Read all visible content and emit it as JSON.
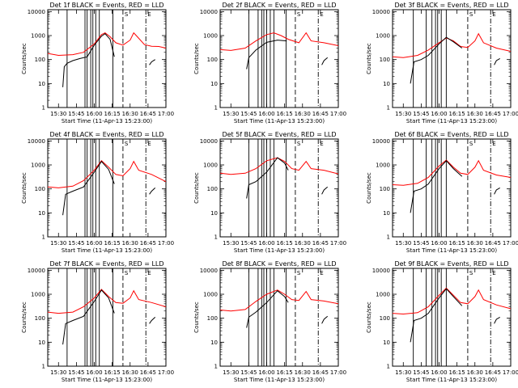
{
  "chart_data": {
    "type": "line",
    "layout": "3x3 grid",
    "xlabel": "Start Time (11-Apr-13 15:23:00)",
    "ylabel": "Counts/sec",
    "yscale": "log",
    "ylim": [
      1,
      12000
    ],
    "y_ticks": [
      1,
      10,
      100,
      1000,
      10000
    ],
    "y_tick_labels": [
      "1",
      "10",
      "100",
      "1000",
      "10000"
    ],
    "xlim_minutes": [
      15.35,
      17.0
    ],
    "x_tick_labels": [
      "15:30",
      "15:45",
      "16:00",
      "16:15",
      "16:30",
      "16:45",
      "17:00"
    ],
    "x_tick_values_hours": [
      15.5,
      15.75,
      16.0,
      16.25,
      16.5,
      16.75,
      17.0
    ],
    "colors": {
      "events": "#000000",
      "lld": "#ff0000"
    },
    "marker_labels": {
      "dashed": "S",
      "dashdot": "E"
    },
    "panels": [
      {
        "title": "Det 1f BLACK = Events, RED = LLD",
        "solid_lines_hours": [
          15.62,
          15.87,
          15.9,
          15.95,
          15.98,
          16.02,
          16.07,
          16.26
        ],
        "dashed_hour": 16.4,
        "dashdot_hour": 16.72,
        "red": [
          [
            15.35,
            180
          ],
          [
            15.5,
            150
          ],
          [
            15.7,
            160
          ],
          [
            15.85,
            200
          ],
          [
            16.0,
            450
          ],
          [
            16.1,
            1100
          ],
          [
            16.15,
            1300
          ],
          [
            16.22,
            900
          ],
          [
            16.3,
            500
          ],
          [
            16.4,
            400
          ],
          [
            16.5,
            650
          ],
          [
            16.55,
            1300
          ],
          [
            16.6,
            900
          ],
          [
            16.7,
            420
          ],
          [
            16.8,
            360
          ],
          [
            16.9,
            350
          ],
          [
            17.0,
            300
          ]
        ],
        "black": [
          [
            15.56,
            7
          ],
          [
            15.58,
            50
          ],
          [
            15.62,
            70
          ],
          [
            15.7,
            90
          ],
          [
            15.8,
            110
          ],
          [
            15.9,
            130
          ],
          [
            16.0,
            400
          ],
          [
            16.1,
            950
          ],
          [
            16.15,
            1200
          ],
          [
            16.22,
            700
          ],
          [
            16.28,
            130
          ]
        ],
        "black2": [
          [
            16.77,
            60
          ],
          [
            16.8,
            80
          ],
          [
            16.85,
            100
          ]
        ]
      },
      {
        "title": "Det 2f BLACK = Events, RED = LLD",
        "solid_lines_hours": [
          15.75,
          15.88,
          15.93,
          15.96,
          16.0,
          16.05,
          16.1,
          16.27
        ],
        "dashed_hour": 16.4,
        "dashdot_hour": 16.72,
        "red": [
          [
            15.35,
            260
          ],
          [
            15.5,
            240
          ],
          [
            15.7,
            300
          ],
          [
            15.85,
            600
          ],
          [
            16.0,
            1100
          ],
          [
            16.1,
            1300
          ],
          [
            16.2,
            1000
          ],
          [
            16.3,
            700
          ],
          [
            16.45,
            500
          ],
          [
            16.55,
            1300
          ],
          [
            16.62,
            600
          ],
          [
            16.8,
            500
          ],
          [
            17.0,
            380
          ]
        ],
        "black": [
          [
            15.72,
            40
          ],
          [
            15.75,
            120
          ],
          [
            15.85,
            250
          ],
          [
            16.0,
            520
          ],
          [
            16.15,
            650
          ],
          [
            16.28,
            600
          ]
        ],
        "black2": [
          [
            16.77,
            60
          ],
          [
            16.8,
            90
          ],
          [
            16.85,
            120
          ]
        ]
      },
      {
        "title": "Det 3f BLACK = Events, RED = LLD",
        "solid_lines_hours": [
          15.64,
          15.82,
          15.9,
          15.95,
          15.98,
          16.03,
          16.1
        ],
        "dashed_hour": 16.4,
        "dashdot_hour": 16.72,
        "red": [
          [
            15.35,
            130
          ],
          [
            15.5,
            120
          ],
          [
            15.7,
            150
          ],
          [
            15.85,
            250
          ],
          [
            16.0,
            500
          ],
          [
            16.1,
            800
          ],
          [
            16.2,
            600
          ],
          [
            16.3,
            350
          ],
          [
            16.4,
            320
          ],
          [
            16.5,
            600
          ],
          [
            16.55,
            1200
          ],
          [
            16.62,
            500
          ],
          [
            16.8,
            300
          ],
          [
            17.0,
            220
          ]
        ],
        "black": [
          [
            15.6,
            10
          ],
          [
            15.65,
            80
          ],
          [
            15.75,
            100
          ],
          [
            15.85,
            150
          ],
          [
            16.0,
            450
          ],
          [
            16.1,
            850
          ],
          [
            16.2,
            550
          ],
          [
            16.32,
            300
          ]
        ],
        "black2": [
          [
            16.77,
            60
          ],
          [
            16.8,
            90
          ],
          [
            16.85,
            110
          ]
        ]
      },
      {
        "title": "Det 4f BLACK = Events, RED = LLD",
        "solid_lines_hours": [
          15.62,
          15.87,
          15.9,
          15.95,
          15.98,
          16.02,
          16.07,
          16.26
        ],
        "dashed_hour": 16.4,
        "dashdot_hour": 16.72,
        "red": [
          [
            15.35,
            120
          ],
          [
            15.5,
            110
          ],
          [
            15.7,
            130
          ],
          [
            15.85,
            220
          ],
          [
            16.0,
            600
          ],
          [
            16.1,
            1500
          ],
          [
            16.2,
            800
          ],
          [
            16.3,
            400
          ],
          [
            16.4,
            350
          ],
          [
            16.5,
            700
          ],
          [
            16.55,
            1400
          ],
          [
            16.62,
            600
          ],
          [
            16.8,
            400
          ],
          [
            17.0,
            200
          ]
        ],
        "black": [
          [
            15.56,
            8
          ],
          [
            15.6,
            60
          ],
          [
            15.7,
            80
          ],
          [
            15.85,
            120
          ],
          [
            16.0,
            500
          ],
          [
            16.1,
            1400
          ],
          [
            16.2,
            650
          ],
          [
            16.28,
            160
          ]
        ],
        "black2": [
          [
            16.77,
            60
          ],
          [
            16.8,
            80
          ],
          [
            16.85,
            110
          ]
        ]
      },
      {
        "title": "Det 5f BLACK = Events, RED = LLD",
        "solid_lines_hours": [
          15.75,
          15.88,
          15.93,
          15.96,
          16.0,
          16.05,
          16.1,
          16.27
        ],
        "dashed_hour": 16.4,
        "dashdot_hour": 16.72,
        "red": [
          [
            15.35,
            450
          ],
          [
            15.5,
            400
          ],
          [
            15.7,
            450
          ],
          [
            15.85,
            700
          ],
          [
            16.0,
            1500
          ],
          [
            16.15,
            2000
          ],
          [
            16.25,
            1400
          ],
          [
            16.35,
            700
          ],
          [
            16.45,
            600
          ],
          [
            16.55,
            1400
          ],
          [
            16.62,
            700
          ],
          [
            16.8,
            600
          ],
          [
            17.0,
            420
          ]
        ],
        "black": [
          [
            15.72,
            40
          ],
          [
            15.75,
            150
          ],
          [
            15.85,
            200
          ],
          [
            16.0,
            500
          ],
          [
            16.15,
            2000
          ],
          [
            16.25,
            1200
          ],
          [
            16.3,
            600
          ]
        ],
        "black2": [
          [
            16.77,
            60
          ],
          [
            16.8,
            90
          ],
          [
            16.85,
            120
          ]
        ]
      },
      {
        "title": "Det 6f BLACK = Events, RED = LLD",
        "solid_lines_hours": [
          15.64,
          15.82,
          15.9,
          15.95,
          15.98,
          16.03,
          16.1
        ],
        "dashed_hour": 16.4,
        "dashdot_hour": 16.72,
        "red": [
          [
            15.35,
            150
          ],
          [
            15.5,
            140
          ],
          [
            15.7,
            170
          ],
          [
            15.85,
            300
          ],
          [
            16.0,
            900
          ],
          [
            16.1,
            1600
          ],
          [
            16.2,
            800
          ],
          [
            16.3,
            450
          ],
          [
            16.4,
            400
          ],
          [
            16.5,
            800
          ],
          [
            16.55,
            1500
          ],
          [
            16.62,
            600
          ],
          [
            16.8,
            380
          ],
          [
            17.0,
            300
          ]
        ],
        "black": [
          [
            15.6,
            10
          ],
          [
            15.65,
            80
          ],
          [
            15.75,
            100
          ],
          [
            15.85,
            160
          ],
          [
            16.0,
            700
          ],
          [
            16.1,
            1500
          ],
          [
            16.2,
            700
          ],
          [
            16.32,
            330
          ]
        ],
        "black2": [
          [
            16.77,
            60
          ],
          [
            16.8,
            90
          ],
          [
            16.85,
            110
          ]
        ]
      },
      {
        "title": "Det 7f BLACK = Events, RED = LLD",
        "solid_lines_hours": [
          15.62,
          15.87,
          15.9,
          15.95,
          15.98,
          16.02,
          16.07,
          16.26
        ],
        "dashed_hour": 16.4,
        "dashdot_hour": 16.72,
        "red": [
          [
            15.35,
            180
          ],
          [
            15.5,
            160
          ],
          [
            15.7,
            180
          ],
          [
            15.85,
            300
          ],
          [
            16.0,
            700
          ],
          [
            16.1,
            1600
          ],
          [
            16.2,
            800
          ],
          [
            16.3,
            450
          ],
          [
            16.4,
            420
          ],
          [
            16.5,
            700
          ],
          [
            16.55,
            1400
          ],
          [
            16.62,
            600
          ],
          [
            16.8,
            450
          ],
          [
            17.0,
            300
          ]
        ],
        "black": [
          [
            15.56,
            8
          ],
          [
            15.6,
            60
          ],
          [
            15.7,
            80
          ],
          [
            15.85,
            120
          ],
          [
            16.0,
            500
          ],
          [
            16.1,
            1500
          ],
          [
            16.2,
            700
          ],
          [
            16.28,
            160
          ]
        ],
        "black2": [
          [
            16.77,
            60
          ],
          [
            16.8,
            80
          ],
          [
            16.85,
            110
          ]
        ]
      },
      {
        "title": "Det 8f BLACK = Events, RED = LLD",
        "solid_lines_hours": [
          15.75,
          15.88,
          15.93,
          15.96,
          16.0,
          16.05,
          16.1,
          16.27
        ],
        "dashed_hour": 16.4,
        "dashdot_hour": 16.72,
        "red": [
          [
            15.35,
            220
          ],
          [
            15.5,
            200
          ],
          [
            15.7,
            230
          ],
          [
            15.85,
            500
          ],
          [
            16.0,
            1000
          ],
          [
            16.15,
            1500
          ],
          [
            16.25,
            1000
          ],
          [
            16.35,
            600
          ],
          [
            16.45,
            550
          ],
          [
            16.55,
            1300
          ],
          [
            16.62,
            600
          ],
          [
            16.8,
            520
          ],
          [
            17.0,
            400
          ]
        ],
        "black": [
          [
            15.72,
            40
          ],
          [
            15.75,
            110
          ],
          [
            15.85,
            180
          ],
          [
            16.0,
            450
          ],
          [
            16.15,
            1400
          ],
          [
            16.25,
            800
          ],
          [
            16.3,
            450
          ]
        ],
        "black2": [
          [
            16.77,
            60
          ],
          [
            16.8,
            90
          ],
          [
            16.85,
            120
          ]
        ]
      },
      {
        "title": "Det 9f BLACK = Events, RED = LLD",
        "solid_lines_hours": [
          15.64,
          15.82,
          15.9,
          15.95,
          15.98,
          16.03,
          16.1
        ],
        "dashed_hour": 16.4,
        "dashdot_hour": 16.72,
        "red": [
          [
            15.35,
            160
          ],
          [
            15.5,
            150
          ],
          [
            15.7,
            170
          ],
          [
            15.85,
            300
          ],
          [
            16.0,
            900
          ],
          [
            16.1,
            1800
          ],
          [
            16.2,
            900
          ],
          [
            16.3,
            450
          ],
          [
            16.4,
            400
          ],
          [
            16.5,
            800
          ],
          [
            16.55,
            1500
          ],
          [
            16.62,
            600
          ],
          [
            16.8,
            360
          ],
          [
            17.0,
            250
          ]
        ],
        "black": [
          [
            15.6,
            10
          ],
          [
            15.65,
            80
          ],
          [
            15.75,
            100
          ],
          [
            15.85,
            160
          ],
          [
            16.0,
            700
          ],
          [
            16.1,
            1700
          ],
          [
            16.2,
            800
          ],
          [
            16.32,
            330
          ]
        ],
        "black2": [
          [
            16.77,
            60
          ],
          [
            16.8,
            90
          ],
          [
            16.85,
            110
          ]
        ]
      }
    ]
  }
}
